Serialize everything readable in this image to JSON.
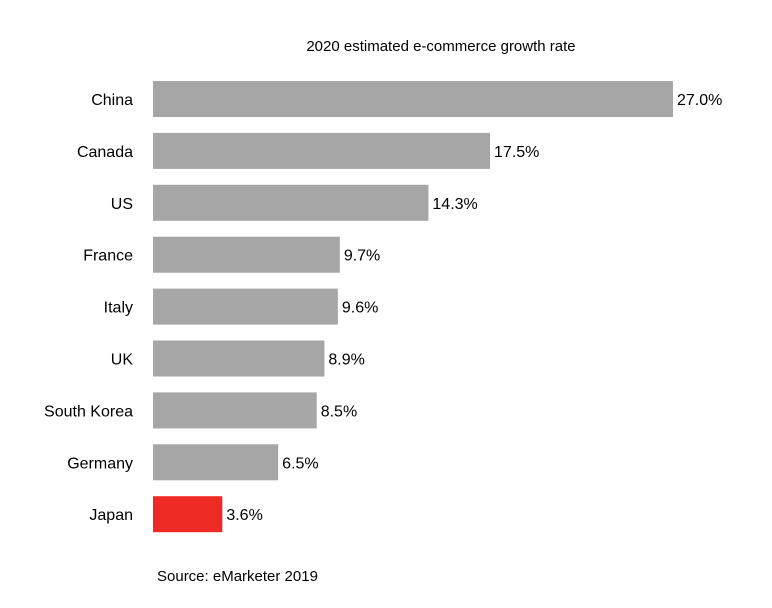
{
  "chart_data": {
    "type": "bar",
    "orientation": "horizontal",
    "title": "2020 estimated e-commerce growth rate",
    "categories": [
      "China",
      "Canada",
      "US",
      "France",
      "Italy",
      "UK",
      "South Korea",
      "Germany",
      "Japan"
    ],
    "values": [
      27.0,
      17.5,
      14.3,
      9.7,
      9.6,
      8.9,
      8.5,
      6.5,
      3.6
    ],
    "data_labels": [
      "27.0%",
      "17.5%",
      "14.3%",
      "9.7%",
      "9.6%",
      "8.9%",
      "8.5%",
      "6.5%",
      "3.6%"
    ],
    "unit": "%",
    "xlim": [
      0,
      27
    ],
    "grid": false,
    "axis_ticks_shown": false,
    "colors": {
      "default": "#a6a6a6",
      "highlight": "#ee2a24"
    },
    "highlight_category": "Japan",
    "source": "Source: eMarketer 2019"
  }
}
